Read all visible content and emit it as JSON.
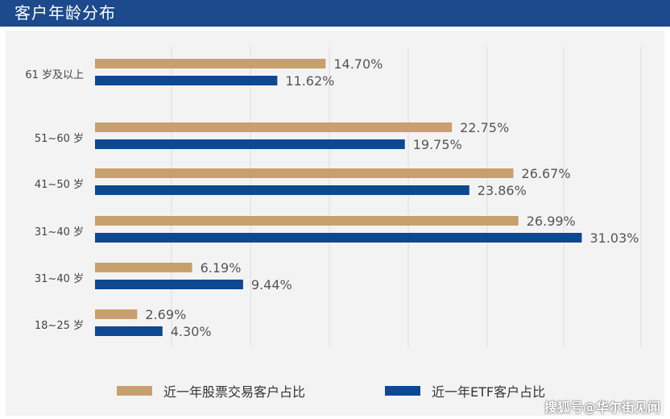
{
  "header": {
    "title": "客户年龄分布"
  },
  "colors": {
    "header_bg": "#1c4a8c",
    "series_stock": "#c8a06e",
    "series_etf": "#0e4890"
  },
  "legend": {
    "stock_label": "近一年股票交易客户占比",
    "etf_label": "近一年ETF客户占比"
  },
  "watermark": "搜狐号@华尔街见闻",
  "chart_data": {
    "type": "bar",
    "orientation": "horizontal",
    "categories": [
      "61 岁及以上",
      "51~60 岁",
      "41~50 岁",
      "31~40 岁",
      "31~40 岁",
      "18~25 岁"
    ],
    "series": [
      {
        "name": "近一年股票交易客户占比",
        "values": [
          14.7,
          22.75,
          26.67,
          26.99,
          6.19,
          2.69
        ],
        "labels": [
          "14.70%",
          "22.75%",
          "26.67%",
          "26.99%",
          "6.19%",
          "2.69%"
        ]
      },
      {
        "name": "近一年ETF客户占比",
        "values": [
          11.62,
          19.75,
          23.86,
          31.03,
          9.44,
          4.3
        ],
        "labels": [
          "11.62%",
          "19.75%",
          "23.86%",
          "31.03%",
          "9.44%",
          "4.30%"
        ]
      }
    ],
    "xlim": [
      0,
      35
    ],
    "grid": true,
    "legend_position": "bottom"
  }
}
